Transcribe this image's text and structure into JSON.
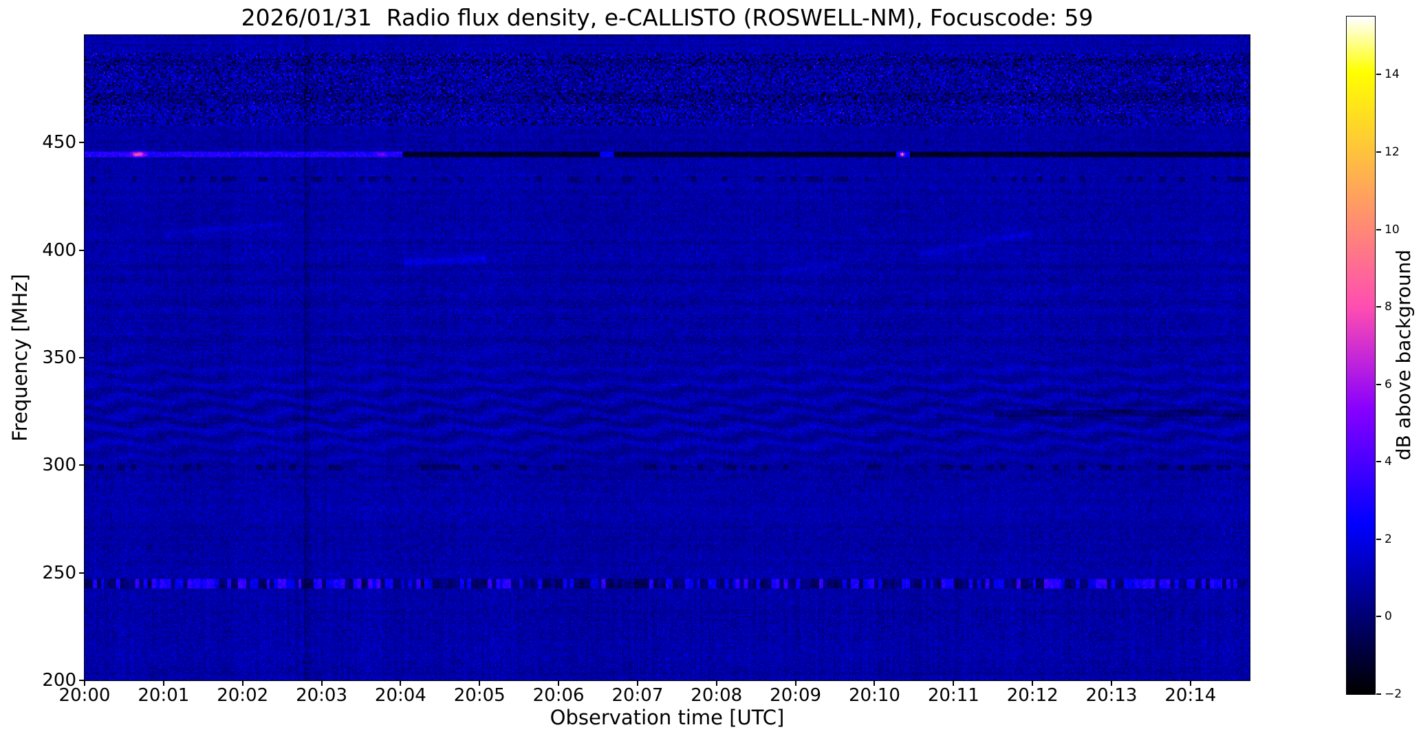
{
  "chart_data": {
    "type": "heatmap",
    "title": "2026/01/31  Radio flux density, e-CALLISTO (ROSWELL-NM), Focuscode: 59",
    "xlabel": "Observation time [UTC]",
    "ylabel": "Frequency [MHz]",
    "colorbar": {
      "label": "dB above background",
      "ticks": [
        -2,
        0,
        2,
        4,
        6,
        8,
        10,
        12,
        14
      ],
      "vmin": -2,
      "vmax": 15.5,
      "colormap": "gnuplot2"
    },
    "x_axis": {
      "start_time_utc": "20:00",
      "duration_seconds": 885,
      "tick_interval_seconds": 60,
      "tick_labels": [
        "20:00",
        "20:01",
        "20:02",
        "20:03",
        "20:04",
        "20:05",
        "20:06",
        "20:07",
        "20:08",
        "20:09",
        "20:10",
        "20:11",
        "20:12",
        "20:13",
        "20:14"
      ]
    },
    "y_axis": {
      "min_mhz": 200,
      "max_mhz": 500,
      "tick_labels": [
        200,
        250,
        300,
        350,
        400,
        450
      ]
    },
    "background_model": {
      "mean_db": 0.85,
      "noise_sigma_db": 0.38,
      "row_stripe_sigma_db": 0.08,
      "col_stripe_sigma_db": 0.06,
      "low_band": {
        "below_mhz": 242,
        "amplitude_db": 0.17
      },
      "seed": 1234
    },
    "features": [
      {
        "type": "fringes",
        "f_center": 323,
        "f_sigma": 24,
        "period_mhz": 7,
        "amplitude_db": 0.5,
        "wobble_mhz": 1.6,
        "wobble_period_s": 55
      },
      {
        "type": "fringes",
        "f_center": 370,
        "f_sigma": 40,
        "period_mhz": 9,
        "amplitude_db": 0.15,
        "wobble_mhz": 1.0,
        "wobble_period_s": 70
      },
      {
        "type": "band_noise",
        "f0": 458,
        "f1": 492,
        "sigma_db": 0.75,
        "dark_fraction": 0.12,
        "dark_db": -1.6,
        "bright_fraction": 0.03,
        "bright_db": 1.8
      },
      {
        "type": "hline",
        "f0": 468,
        "f1": 473,
        "t0": 0,
        "t1": 885,
        "delta_db": -0.5
      },
      {
        "type": "hline",
        "f0": 486,
        "f1": 489,
        "t0": 0,
        "t1": 885,
        "delta_db": -0.5
      },
      {
        "type": "hline",
        "f0": 443,
        "f1": 446,
        "t0": 0,
        "t1": 242,
        "set_db": 3.1,
        "jitter_db": 0.5
      },
      {
        "type": "blob",
        "f": 444.5,
        "t": 41,
        "t_sigma": 5,
        "f_sigma": 1.2,
        "peak_db": 5.5
      },
      {
        "type": "blob",
        "f": 444.5,
        "t": 226,
        "t_sigma": 3,
        "f_sigma": 1.0,
        "peak_db": 2.5
      },
      {
        "type": "hline",
        "f0": 443,
        "f1": 446,
        "t0": 242,
        "t1": 885,
        "set_db": -1.3,
        "jitter_db": 0.3
      },
      {
        "type": "hline",
        "f0": 443.5,
        "f1": 445.5,
        "t0": 392,
        "t1": 402,
        "set_db": 2.3,
        "jitter_db": 0.3
      },
      {
        "type": "hline",
        "f0": 443.5,
        "f1": 445.5,
        "t0": 616,
        "t1": 627,
        "set_db": 2.3,
        "jitter_db": 0.3
      },
      {
        "type": "blob",
        "f": 444.5,
        "t": 621,
        "t_sigma": 1.5,
        "f_sigma": 0.8,
        "peak_db": 8.5
      },
      {
        "type": "dashes",
        "f0": 432,
        "f1": 434.5,
        "t0": 0,
        "t1": 885,
        "delta_db": -0.9,
        "fraction": 0.3,
        "cell_s": 4
      },
      {
        "type": "rfi_channel",
        "f0": 243,
        "f1": 247.5,
        "cell_s": 3,
        "bright_db": 1.9,
        "dark_db": -1.3,
        "bright_fraction": 0.5
      },
      {
        "type": "dashes",
        "f0": 297.5,
        "f1": 300,
        "t0": 0,
        "t1": 885,
        "delta_db": -0.9,
        "fraction": 0.25,
        "cell_s": 5
      },
      {
        "type": "hline",
        "f0": 322.5,
        "f1": 325.5,
        "t0": 690,
        "t1": 885,
        "delta_db": -0.9
      },
      {
        "type": "vline",
        "t0": 167,
        "t1": 171,
        "delta_db": -0.5
      },
      {
        "type": "streak",
        "t0": 243,
        "t1": 305,
        "fa": 394,
        "fb": 396,
        "width_mhz": 2,
        "delta_db": 0.9
      },
      {
        "type": "streak",
        "t0": 530,
        "t1": 575,
        "fa": 391,
        "fb": 393,
        "width_mhz": 1.5,
        "delta_db": 0.7
      },
      {
        "type": "streak",
        "t0": 635,
        "t1": 720,
        "fa": 398,
        "fb": 408,
        "width_mhz": 1.8,
        "delta_db": 0.6
      },
      {
        "type": "streak",
        "t0": 60,
        "t1": 150,
        "fa": 408,
        "fb": 412,
        "width_mhz": 1.5,
        "delta_db": 0.5
      }
    ]
  }
}
